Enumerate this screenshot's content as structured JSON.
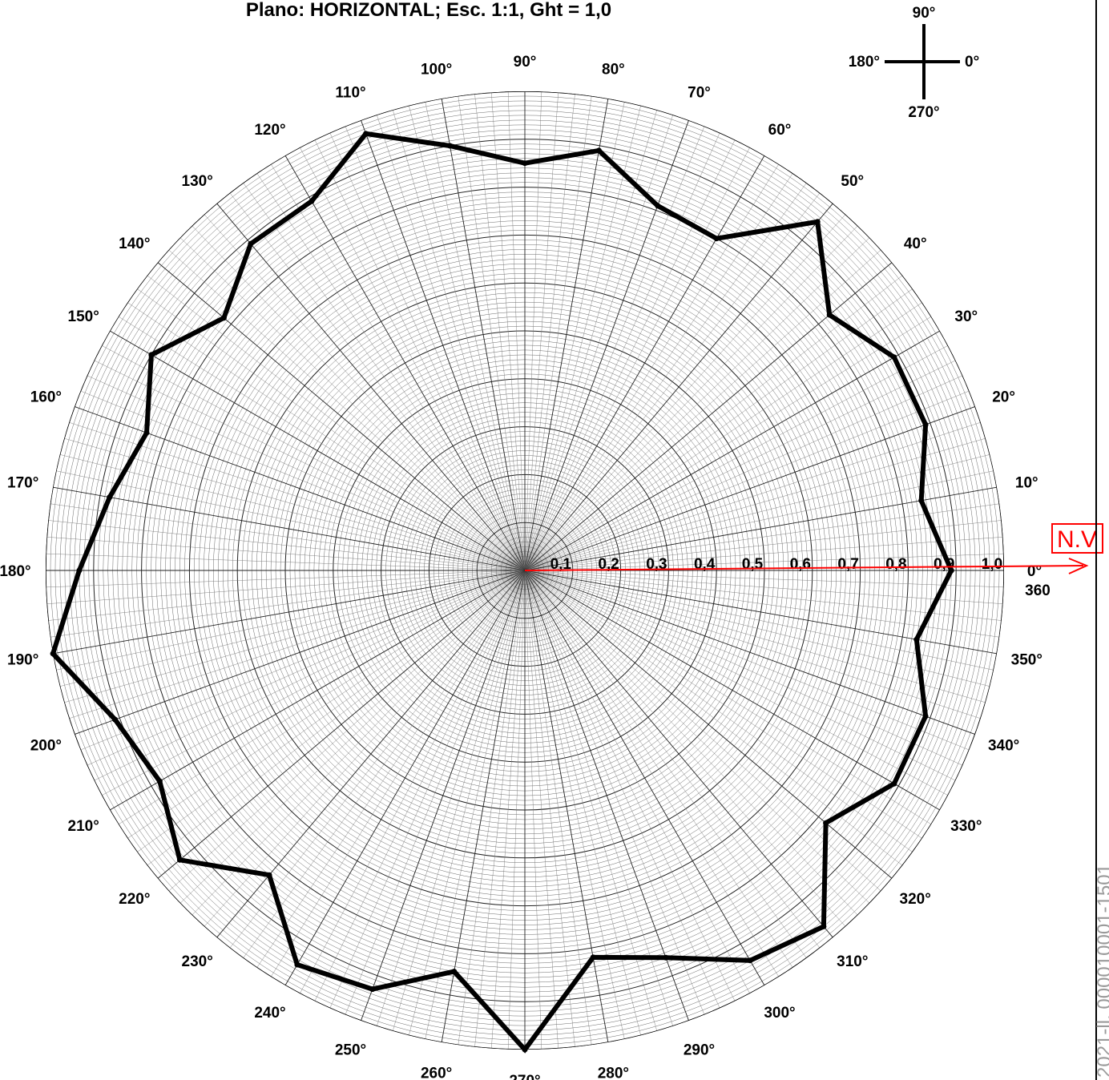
{
  "title": "Plano: HORIZONTAL; Esc. 1:1, Ght = 1,0",
  "compass": {
    "east": "0°",
    "north": "90°",
    "west": "180°",
    "south": "270°"
  },
  "nv_label": "N.V",
  "side_text": "2021-ll, 000010001-1501",
  "zero_end_label": "360",
  "colors": {
    "curve": "#000000",
    "reference_arrow": "#ff0000",
    "grid": "#1a1a1a",
    "background": "#ffffff"
  },
  "chart_data": {
    "type": "polar-line",
    "title": "Plano: HORIZONTAL; Esc. 1:1, Ght = 1,0",
    "r_range": [
      0,
      1.0
    ],
    "r_ticks": [
      "0,1",
      "0,2",
      "0,3",
      "0,4",
      "0,5",
      "0,6",
      "0,7",
      "0,8",
      "0,9",
      "1,0"
    ],
    "angle_ticks": [
      "0°",
      "10°",
      "20°",
      "30°",
      "40°",
      "50°",
      "60°",
      "70°",
      "80°",
      "90°",
      "100°",
      "110°",
      "120°",
      "130°",
      "140°",
      "150°",
      "160°",
      "170°",
      "180°",
      "190°",
      "200°",
      "210°",
      "220°",
      "230°",
      "240°",
      "250°",
      "260°",
      "270°",
      "280°",
      "290°",
      "300°",
      "310°",
      "320°",
      "330°",
      "340°",
      "350°"
    ],
    "grid": true,
    "series": [
      {
        "angles": [
          0,
          10,
          20,
          30,
          40,
          50,
          60,
          70,
          80,
          90,
          100,
          110,
          120,
          130,
          140,
          150,
          160,
          170,
          180,
          190,
          200,
          210,
          220,
          230,
          240,
          250,
          260,
          270,
          280,
          290,
          300,
          310,
          320,
          330,
          340,
          350,
          360
        ],
        "values": [
          0.89,
          0.84,
          0.89,
          0.89,
          0.83,
          0.95,
          0.8,
          0.81,
          0.89,
          0.85,
          0.9,
          0.97,
          0.89,
          0.89,
          0.82,
          0.9,
          0.84,
          0.88,
          0.93,
          1.0,
          0.91,
          0.88,
          0.94,
          0.83,
          0.95,
          0.93,
          0.85,
          1.0,
          0.82,
          0.86,
          0.94,
          0.97,
          0.82,
          0.89,
          0.89,
          0.83,
          0.89
        ]
      }
    ],
    "reference_arrow": {
      "angle": 0,
      "label": "N.V"
    }
  }
}
